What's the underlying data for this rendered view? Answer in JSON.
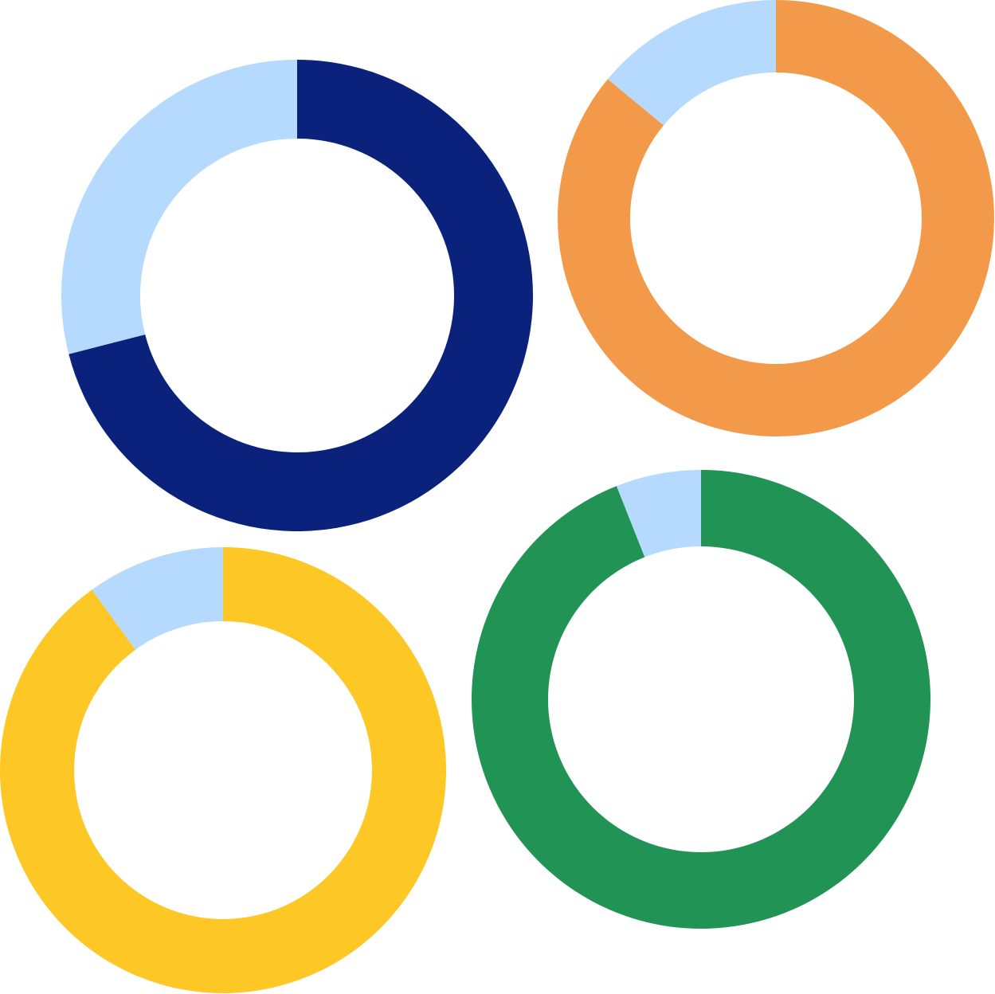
{
  "chart_data": [
    {
      "type": "donut",
      "values": [
        71,
        29
      ],
      "colors": [
        "#0a227b",
        "#b5dafd"
      ]
    },
    {
      "type": "donut",
      "values": [
        86,
        14
      ],
      "colors": [
        "#f29a4a",
        "#b5dafd"
      ]
    },
    {
      "type": "donut",
      "values": [
        90,
        10
      ],
      "colors": [
        "#fdc726",
        "#b5dafd"
      ]
    },
    {
      "type": "donut",
      "values": [
        94,
        6
      ],
      "colors": [
        "#219455",
        "#b5dafd"
      ]
    }
  ]
}
